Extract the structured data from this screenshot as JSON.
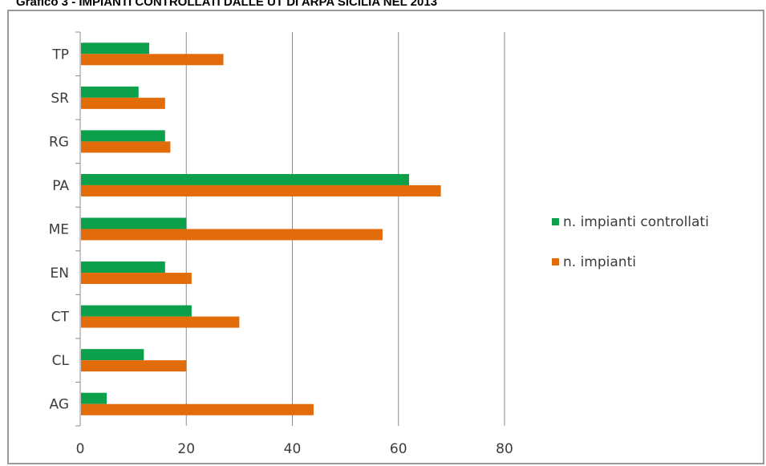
{
  "page": {
    "title": "Grafico 3 - IMPIANTI CONTROLLATI DALLE UT DI ARPA SICILIA NEL 2013"
  },
  "chart_data": {
    "type": "bar",
    "orientation": "horizontal",
    "title": "",
    "xlabel": "",
    "ylabel": "",
    "categories": [
      "TP",
      "SR",
      "RG",
      "PA",
      "ME",
      "EN",
      "CT",
      "CL",
      "AG"
    ],
    "series": [
      {
        "name": "n. impianti controllati",
        "color": "#0ca04a",
        "values": [
          13,
          11,
          16,
          62,
          20,
          16,
          21,
          12,
          5
        ]
      },
      {
        "name": "n. impianti",
        "color": "#e36c0a",
        "values": [
          27,
          16,
          17,
          68,
          57,
          21,
          30,
          20,
          44
        ]
      }
    ],
    "xlim": [
      0,
      80
    ],
    "xticks": [
      "0",
      "20",
      "40",
      "60",
      "80"
    ],
    "grid": "vertical",
    "legend_position": "right"
  }
}
